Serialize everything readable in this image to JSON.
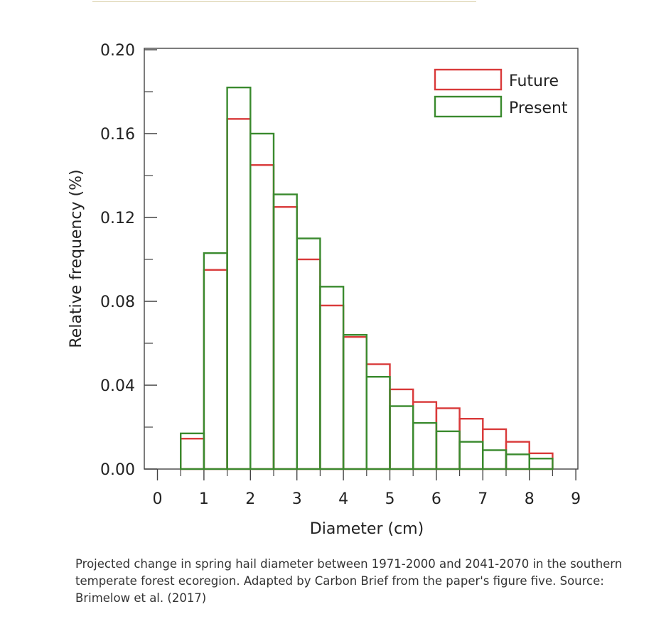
{
  "caption": "Projected change in spring hail diameter between 1971-2000 and 2041-2070 in the southern temperate forest ecoregion. Adapted by Carbon Brief from the paper's figure five. Source: Brimelow et al. (2017)",
  "chart_data": {
    "type": "bar",
    "xlabel": "Diameter (cm)",
    "ylabel": "Relative frequency (%)",
    "xlim": [
      0,
      9
    ],
    "ylim": [
      0,
      0.2
    ],
    "x_ticks": [
      "0",
      "1",
      "2",
      "3",
      "4",
      "5",
      "6",
      "7",
      "8",
      "9"
    ],
    "y_ticks": [
      "0.00",
      "0.04",
      "0.08",
      "0.12",
      "0.16",
      "0.20"
    ],
    "bin_width": 0.5,
    "bin_starts": [
      0.5,
      1.0,
      1.5,
      2.0,
      2.5,
      3.0,
      3.5,
      4.0,
      4.5,
      5.0,
      5.5,
      6.0,
      6.5,
      7.0,
      7.5,
      8.0
    ],
    "grid": false,
    "legend_position": "top-right",
    "series": [
      {
        "name": "Future",
        "color": "#d93a3a",
        "values": [
          0.0145,
          0.095,
          0.167,
          0.145,
          0.125,
          0.1,
          0.078,
          0.063,
          0.05,
          0.038,
          0.032,
          0.029,
          0.024,
          0.019,
          0.013,
          0.0075
        ]
      },
      {
        "name": "Present",
        "color": "#3a8a2e",
        "values": [
          0.017,
          0.103,
          0.182,
          0.16,
          0.131,
          0.11,
          0.087,
          0.064,
          0.044,
          0.03,
          0.022,
          0.018,
          0.013,
          0.009,
          0.007,
          0.005
        ]
      }
    ]
  }
}
